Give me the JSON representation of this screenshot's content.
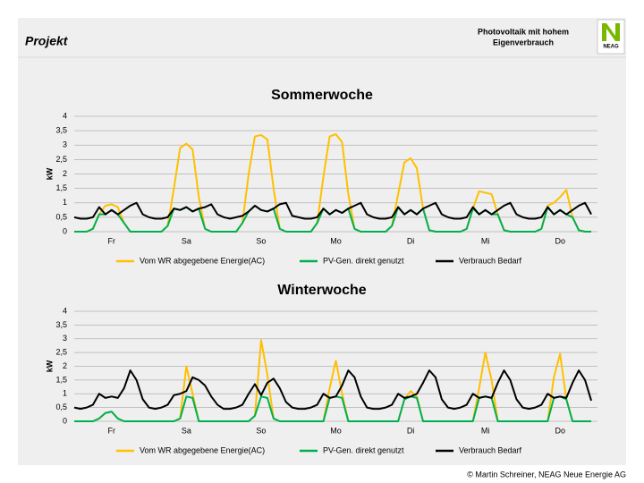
{
  "header": {
    "title": "Projekt",
    "subtitle_lines": [
      "Photovoltaik mit hohem",
      "Eigenverbrauch"
    ],
    "logo": "NEAG"
  },
  "footer": "© Martin Schreiner, NEAG Neue Energie AG",
  "chart_data": [
    {
      "type": "line",
      "title": "Sommerwoche",
      "y_label": "kW",
      "x": [
        0,
        2,
        4,
        6,
        8,
        10,
        12,
        14,
        16,
        18,
        20,
        22,
        24,
        26,
        28,
        30,
        32,
        34,
        36,
        38,
        40,
        42,
        44,
        46,
        48,
        50,
        52,
        54,
        56,
        58,
        60,
        62,
        64,
        66,
        68,
        70,
        72,
        74,
        76,
        78,
        80,
        82,
        84,
        86,
        88,
        90,
        92,
        94,
        96,
        98,
        100,
        102,
        104,
        106,
        108,
        110,
        112,
        114,
        116,
        118,
        120,
        122,
        124,
        126,
        128,
        130,
        132,
        134,
        136,
        138,
        140,
        142,
        144,
        146,
        148,
        150,
        152,
        154,
        156,
        158,
        160,
        162,
        164,
        166
      ],
      "xlim": [
        0,
        168
      ],
      "xticks": [
        {
          "value": 12,
          "label": "Fr"
        },
        {
          "value": 36,
          "label": "Sa"
        },
        {
          "value": 60,
          "label": "So"
        },
        {
          "value": 84,
          "label": "Mo"
        },
        {
          "value": 108,
          "label": "Di"
        },
        {
          "value": 132,
          "label": "Mi"
        },
        {
          "value": 156,
          "label": "Do"
        }
      ],
      "ylim": [
        0,
        4
      ],
      "yticks": [
        0,
        {
          "value": 0.5,
          "label": "0,5"
        },
        1,
        {
          "value": 1.5,
          "label": "1,5"
        },
        2,
        {
          "value": 2.5,
          "label": "2,5"
        },
        3,
        {
          "value": 3.5,
          "label": "3,5"
        },
        4
      ],
      "grid": true,
      "series": [
        {
          "name": "Vom WR abgegebene Energie(AC)",
          "color": "#ffc000",
          "values": [
            0,
            0,
            0,
            0.1,
            0.6,
            0.9,
            0.95,
            0.85,
            0.3,
            0,
            0,
            0,
            0,
            0,
            0,
            0.2,
            1.5,
            2.9,
            3.05,
            2.85,
            1.2,
            0.1,
            0,
            0,
            0,
            0,
            0,
            0.3,
            2,
            3.3,
            3.35,
            3.2,
            1.5,
            0.1,
            0,
            0,
            0,
            0,
            0,
            0.3,
            1.9,
            3.3,
            3.38,
            3.1,
            1.3,
            0.1,
            0,
            0,
            0,
            0,
            0,
            0.2,
            1.3,
            2.4,
            2.55,
            2.2,
            0.8,
            0.05,
            0,
            0,
            0,
            0,
            0,
            0.1,
            0.8,
            1.4,
            1.35,
            1.3,
            0.6,
            0.05,
            0,
            0,
            0,
            0,
            0,
            0.1,
            0.9,
            1,
            1.2,
            1.45,
            0.5,
            0.05,
            0,
            0
          ]
        },
        {
          "name": "PV-Gen. direkt genutzt",
          "color": "#00b050",
          "values": [
            0,
            0,
            0,
            0.1,
            0.6,
            0.6,
            0.75,
            0.6,
            0.3,
            0,
            0,
            0,
            0,
            0,
            0,
            0.2,
            0.8,
            0.75,
            0.85,
            0.7,
            0.8,
            0.1,
            0,
            0,
            0,
            0,
            0,
            0.3,
            0.7,
            0.9,
            0.75,
            0.7,
            0.8,
            0.1,
            0,
            0,
            0,
            0,
            0,
            0.3,
            0.8,
            0.6,
            0.75,
            0.65,
            0.8,
            0.1,
            0,
            0,
            0,
            0,
            0,
            0.2,
            0.85,
            0.6,
            0.75,
            0.6,
            0.8,
            0.05,
            0,
            0,
            0,
            0,
            0,
            0.1,
            0.8,
            0.6,
            0.75,
            0.6,
            0.6,
            0.05,
            0,
            0,
            0,
            0,
            0,
            0.1,
            0.85,
            0.6,
            0.75,
            0.6,
            0.5,
            0.05,
            0,
            0
          ]
        },
        {
          "name": "Verbrauch Bedarf",
          "color": "#000000",
          "values": [
            0.5,
            0.45,
            0.45,
            0.5,
            0.85,
            0.6,
            0.75,
            0.6,
            0.75,
            0.9,
            1,
            0.6,
            0.5,
            0.45,
            0.45,
            0.5,
            0.8,
            0.75,
            0.85,
            0.7,
            0.8,
            0.85,
            0.95,
            0.6,
            0.5,
            0.45,
            0.5,
            0.55,
            0.7,
            0.9,
            0.75,
            0.7,
            0.8,
            0.95,
            1,
            0.55,
            0.5,
            0.45,
            0.45,
            0.5,
            0.8,
            0.6,
            0.75,
            0.65,
            0.8,
            0.9,
            1,
            0.6,
            0.5,
            0.45,
            0.45,
            0.5,
            0.85,
            0.6,
            0.75,
            0.6,
            0.8,
            0.9,
            1,
            0.6,
            0.5,
            0.45,
            0.45,
            0.5,
            0.85,
            0.6,
            0.75,
            0.6,
            0.75,
            0.9,
            1,
            0.6,
            0.5,
            0.45,
            0.45,
            0.5,
            0.85,
            0.6,
            0.75,
            0.6,
            0.75,
            0.9,
            1,
            0.6
          ]
        }
      ]
    },
    {
      "type": "line",
      "title": "Winterwoche",
      "y_label": "kW",
      "x": [
        0,
        2,
        4,
        6,
        8,
        10,
        12,
        14,
        16,
        18,
        20,
        22,
        24,
        26,
        28,
        30,
        32,
        34,
        36,
        38,
        40,
        42,
        44,
        46,
        48,
        50,
        52,
        54,
        56,
        58,
        60,
        62,
        64,
        66,
        68,
        70,
        72,
        74,
        76,
        78,
        80,
        82,
        84,
        86,
        88,
        90,
        92,
        94,
        96,
        98,
        100,
        102,
        104,
        106,
        108,
        110,
        112,
        114,
        116,
        118,
        120,
        122,
        124,
        126,
        128,
        130,
        132,
        134,
        136,
        138,
        140,
        142,
        144,
        146,
        148,
        150,
        152,
        154,
        156,
        158,
        160,
        162,
        164,
        166
      ],
      "xlim": [
        0,
        168
      ],
      "xticks": [
        {
          "value": 12,
          "label": "Fr"
        },
        {
          "value": 36,
          "label": "Sa"
        },
        {
          "value": 60,
          "label": "So"
        },
        {
          "value": 84,
          "label": "Mo"
        },
        {
          "value": 108,
          "label": "Di"
        },
        {
          "value": 132,
          "label": "Mi"
        },
        {
          "value": 156,
          "label": "Do"
        }
      ],
      "ylim": [
        0,
        4
      ],
      "yticks": [
        0,
        {
          "value": 0.5,
          "label": "0,5"
        },
        1,
        {
          "value": 1.5,
          "label": "1,5"
        },
        2,
        {
          "value": 2.5,
          "label": "2,5"
        },
        3,
        {
          "value": 3.5,
          "label": "3,5"
        },
        4
      ],
      "grid": true,
      "series": [
        {
          "name": "Vom WR abgegebene Energie(AC)",
          "color": "#ffc000",
          "values": [
            0,
            0,
            0,
            0,
            0.1,
            0.3,
            0.35,
            0.1,
            0,
            0,
            0,
            0,
            0,
            0,
            0,
            0,
            0,
            0.1,
            2,
            1,
            0,
            0,
            0,
            0,
            0,
            0,
            0,
            0,
            0,
            0.2,
            2.95,
            1.7,
            0.1,
            0,
            0,
            0,
            0,
            0,
            0,
            0,
            0,
            1.2,
            2.2,
            1,
            0,
            0,
            0,
            0,
            0,
            0,
            0,
            0,
            0,
            0.8,
            1.1,
            0.9,
            0,
            0,
            0,
            0,
            0,
            0,
            0,
            0,
            0,
            1.2,
            2.5,
            1.5,
            0,
            0,
            0,
            0,
            0,
            0,
            0,
            0,
            0,
            1.6,
            2.45,
            0.8,
            0,
            0,
            0,
            0
          ]
        },
        {
          "name": "PV-Gen. direkt genutzt",
          "color": "#00b050",
          "values": [
            0,
            0,
            0,
            0,
            0.1,
            0.3,
            0.35,
            0.1,
            0,
            0,
            0,
            0,
            0,
            0,
            0,
            0,
            0,
            0.1,
            0.9,
            0.85,
            0,
            0,
            0,
            0,
            0,
            0,
            0,
            0,
            0,
            0.2,
            0.9,
            0.85,
            0.1,
            0,
            0,
            0,
            0,
            0,
            0,
            0,
            0,
            0.85,
            0.9,
            0.85,
            0,
            0,
            0,
            0,
            0,
            0,
            0,
            0,
            0,
            0.8,
            0.9,
            0.85,
            0,
            0,
            0,
            0,
            0,
            0,
            0,
            0,
            0,
            0.85,
            0.9,
            0.85,
            0,
            0,
            0,
            0,
            0,
            0,
            0,
            0,
            0,
            0.85,
            0.9,
            0.8,
            0,
            0,
            0,
            0
          ]
        },
        {
          "name": "Verbrauch Bedarf",
          "color": "#000000",
          "values": [
            0.5,
            0.45,
            0.5,
            0.6,
            1,
            0.85,
            0.9,
            0.85,
            1.2,
            1.85,
            1.5,
            0.8,
            0.5,
            0.45,
            0.5,
            0.6,
            0.95,
            1,
            1.1,
            1.6,
            1.5,
            1.3,
            0.9,
            0.6,
            0.45,
            0.45,
            0.5,
            0.6,
            1,
            1.35,
            0.95,
            1.4,
            1.55,
            1.2,
            0.7,
            0.5,
            0.45,
            0.45,
            0.5,
            0.6,
            1,
            0.85,
            0.9,
            1.3,
            1.85,
            1.6,
            0.9,
            0.5,
            0.45,
            0.45,
            0.5,
            0.6,
            1,
            0.85,
            0.9,
            1,
            1.4,
            1.85,
            1.6,
            0.8,
            0.5,
            0.45,
            0.5,
            0.6,
            1,
            0.85,
            0.9,
            0.85,
            1.4,
            1.85,
            1.5,
            0.8,
            0.5,
            0.45,
            0.5,
            0.6,
            1,
            0.85,
            0.9,
            0.85,
            1.4,
            1.85,
            1.5,
            0.75
          ]
        }
      ]
    }
  ]
}
